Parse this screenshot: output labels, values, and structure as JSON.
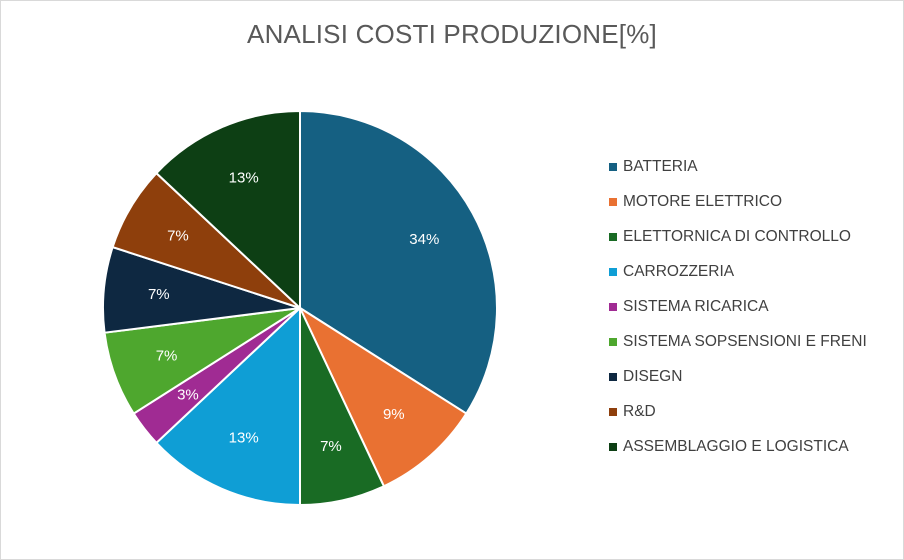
{
  "chart_data": {
    "type": "pie",
    "title": "ANALISI COSTI PRODUZIONE[%]",
    "categories": [
      "BATTERIA",
      "MOTORE ELETTRICO",
      "ELETTORNICA DI CONTROLLO",
      "CARROZZERIA",
      "SISTEMA RICARICA",
      "SISTEMA SOPSENSIONI E FRENI",
      "DISEGN",
      "R&D",
      "ASSEMBLAGGIO E LOGISTICA"
    ],
    "values": [
      34,
      9,
      7,
      13,
      3,
      7,
      7,
      7,
      13
    ],
    "data_labels": [
      "34%",
      "9%",
      "7%",
      "13%",
      "3%",
      "7%",
      "7%",
      "7%",
      "13%"
    ],
    "colors": [
      "#156082",
      "#E97132",
      "#196B24",
      "#0F9ED5",
      "#A02B93",
      "#4EA72E",
      "#0E2841",
      "#8E3F0C",
      "#0D3F14"
    ],
    "legend_position": "right",
    "start_angle": "12 o'clock",
    "direction": "clockwise"
  }
}
